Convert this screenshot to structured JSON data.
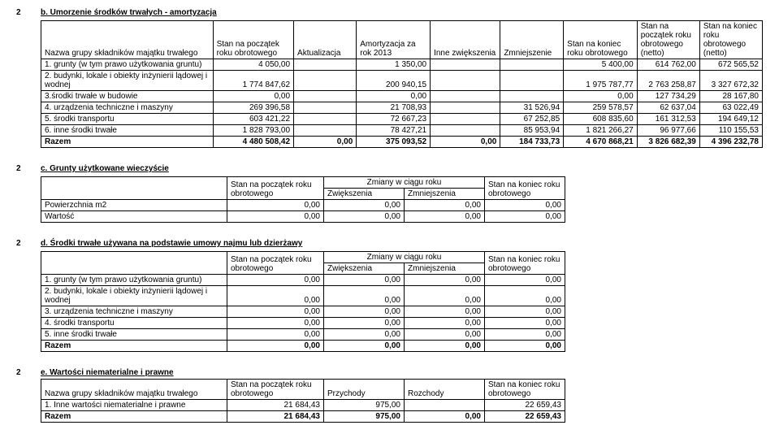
{
  "sectionB": {
    "num": "2",
    "title": "b. Umorzenie środków trwałych - amortyzacja",
    "headers": [
      "Nazwa grupy składników majątku trwałego",
      "Stan na początek roku obrotowego",
      "Aktualizacja",
      "Amortyzacja za rok 2013",
      "Inne zwiększenia",
      "Zmniejszenie",
      "Stan na koniec roku obrotowego",
      "Stan na początek roku obrotowego (netto)",
      "Stan na koniec roku obrotowego (netto)"
    ],
    "rows": [
      {
        "label": "1. grunty (w tym prawo użytkowania gruntu)",
        "vals": [
          "4 050,00",
          "",
          "1 350,00",
          "",
          "",
          "5 400,00",
          "614 762,00",
          "672 565,52"
        ]
      },
      {
        "label": "2. budynki, lokale i obiekty inżynierii lądowej i wodnej",
        "vals": [
          "1 774 847,62",
          "",
          "200 940,15",
          "",
          "",
          "1 975 787,77",
          "2 763 258,87",
          "3 327 672,32"
        ]
      },
      {
        "label": "3.środki trwałe w budowie",
        "vals": [
          "0,00",
          "",
          "0,00",
          "",
          "",
          "0,00",
          "127 734,29",
          "28 167,80"
        ]
      },
      {
        "label": "4. urządzenia techniczne i maszyny",
        "vals": [
          "269 396,58",
          "",
          "21 708,93",
          "",
          "31 526,94",
          "259 578,57",
          "62 637,04",
          "63 022,49"
        ]
      },
      {
        "label": "5. środki transportu",
        "vals": [
          "603 421,22",
          "",
          "72 667,23",
          "",
          "67 252,85",
          "608 835,60",
          "161 312,53",
          "194 649,12"
        ]
      },
      {
        "label": "6. inne środki trwałe",
        "vals": [
          "1 828 793,00",
          "",
          "78 427,21",
          "",
          "85 953,94",
          "1 821 266,27",
          "96 977,66",
          "110 155,53"
        ]
      }
    ],
    "total": {
      "label": "Razem",
      "vals": [
        "4 480 508,42",
        "0,00",
        "375 093,52",
        "0,00",
        "184 733,73",
        "4 670 868,21",
        "3 826 682,39",
        "4 396 232,78"
      ]
    }
  },
  "sectionC": {
    "num": "2",
    "title": "c. Grunty użytkowane wieczyście",
    "headers": [
      "",
      "Stan na początek roku obrotowego",
      "Zmiany w ciągu roku",
      "Stan na koniec roku obrotowego"
    ],
    "subheaders": [
      "",
      "",
      "Zwiększenia",
      "Zmniejszenia",
      ""
    ],
    "rows": [
      {
        "label": "Powierzchnia m2",
        "vals": [
          "0,00",
          "0,00",
          "0,00",
          "0,00"
        ]
      },
      {
        "label": "Wartość",
        "vals": [
          "0,00",
          "0,00",
          "0,00",
          "0,00"
        ]
      }
    ]
  },
  "sectionD": {
    "num": "2",
    "title": "d. Środki trwałe używana na podstawie umowy najmu lub dzierżawy",
    "headers": [
      "",
      "Stan na początek roku obrotowego",
      "Zmiany w ciągu roku",
      "Stan na koniec roku obrotowego"
    ],
    "subheaders": [
      "",
      "",
      "Zwiększenia",
      "Zmniejszenia",
      ""
    ],
    "rows": [
      {
        "label": "1. grunty (w tym prawo użytkowania gruntu)",
        "vals": [
          "0,00",
          "0,00",
          "0,00",
          "0,00"
        ]
      },
      {
        "label": "2. budynki, lokale i obiekty inżynierii lądowej i wodnej",
        "vals": [
          "0,00",
          "0,00",
          "0,00",
          "0,00"
        ]
      },
      {
        "label": "3. urządzenia techniczne i maszyny",
        "vals": [
          "0,00",
          "0,00",
          "0,00",
          "0,00"
        ]
      },
      {
        "label": "4. środki transportu",
        "vals": [
          "0,00",
          "0,00",
          "0,00",
          "0,00"
        ]
      },
      {
        "label": "5. inne środki trwałe",
        "vals": [
          "0,00",
          "0,00",
          "0,00",
          "0,00"
        ]
      }
    ],
    "total": {
      "label": "Razem",
      "vals": [
        "0,00",
        "0,00",
        "0,00",
        "0,00"
      ]
    }
  },
  "sectionE": {
    "num": "2",
    "title": "e. Wartości niematerialne i prawne",
    "headers": [
      "Nazwa grupy składników majątku trwałego",
      "Stan na początek roku obrotowego",
      "Przychody",
      "Rozchody",
      "Stan na koniec roku obrotowego"
    ],
    "rows": [
      {
        "label": "1. Inne wartości niematerialne i prawne",
        "vals": [
          "21 684,43",
          "975,00",
          "",
          "22 659,43"
        ]
      }
    ],
    "total": {
      "label": "Razem",
      "vals": [
        "21 684,43",
        "975,00",
        "0,00",
        "22 659,43"
      ]
    }
  }
}
